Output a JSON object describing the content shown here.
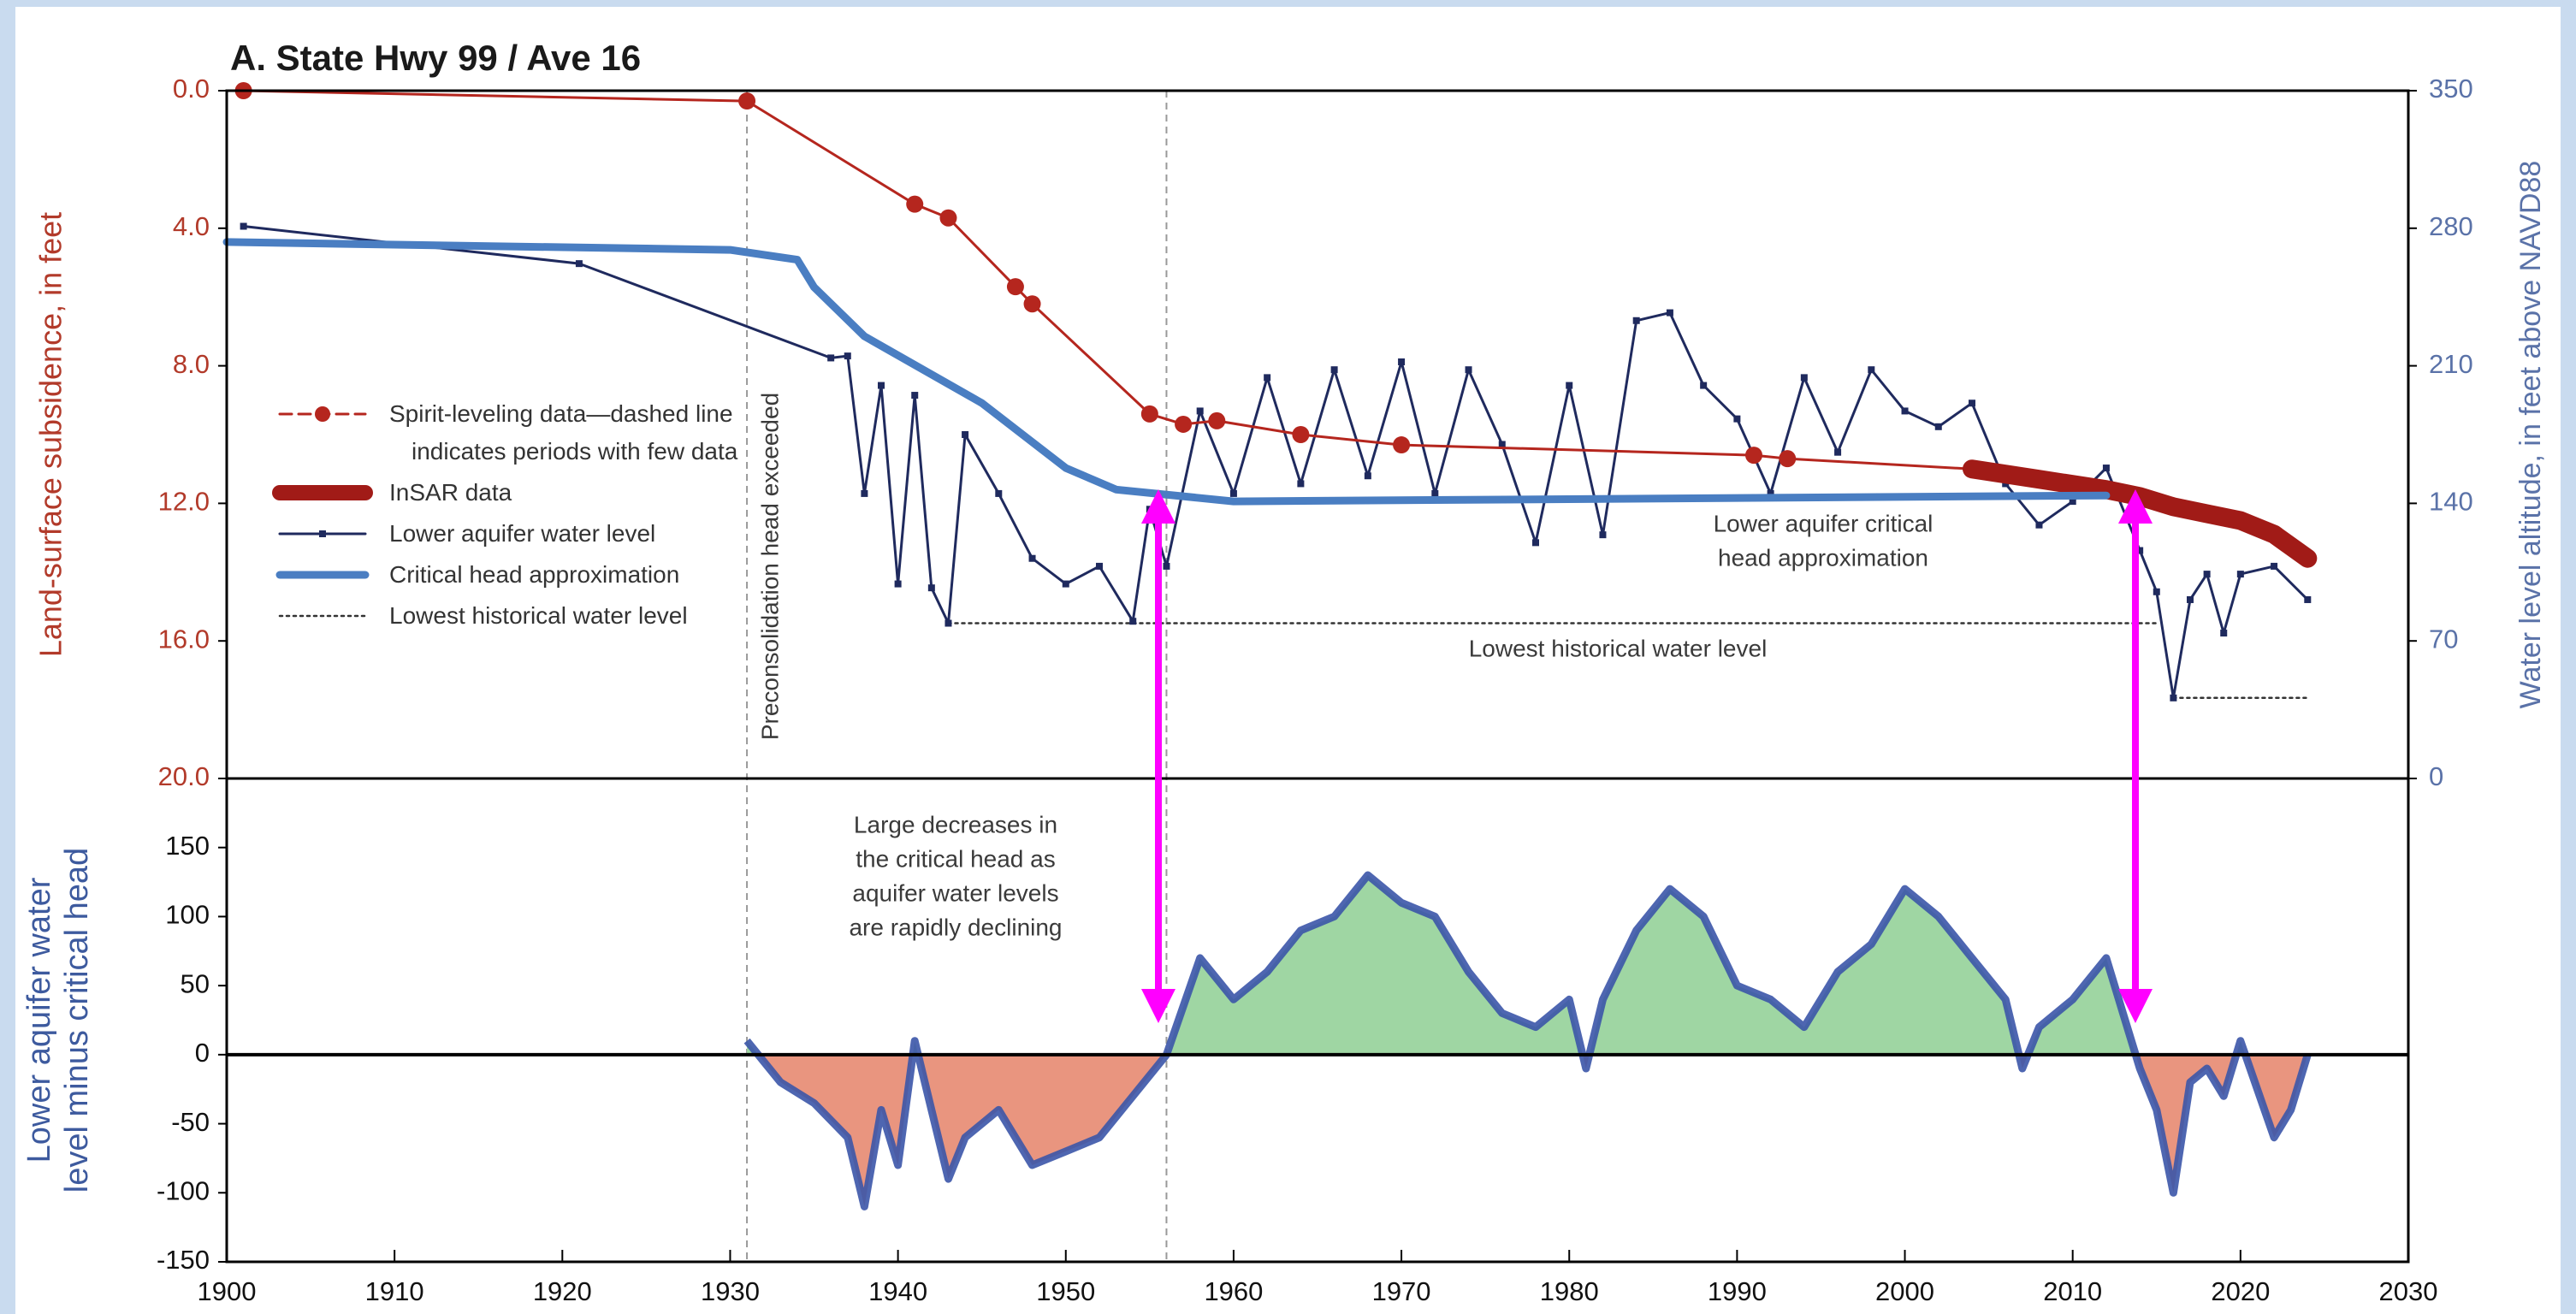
{
  "chart_data": [
    {
      "type": "line",
      "title": "A. State Hwy 99 / Ave 16",
      "ylabel": "Land-surface subsidence, in feet",
      "y2label": "Water level altitude, in feet above NAVD88",
      "xlim": [
        1900,
        2030
      ],
      "ylim": [
        20,
        0
      ],
      "yticks": [
        {
          "value": 0,
          "label": "0.0"
        },
        {
          "value": 4,
          "label": "4.0"
        },
        {
          "value": 8,
          "label": "8.0"
        },
        {
          "value": 12,
          "label": "12.0"
        },
        {
          "value": 16,
          "label": "16.0"
        },
        {
          "value": 20,
          "label": "20.0"
        }
      ],
      "y2lim": [
        0,
        350
      ],
      "y2ticks": [
        0,
        70,
        140,
        210,
        280,
        350
      ],
      "legend": "center left",
      "vlines": [
        1931,
        1956
      ],
      "annotations": [
        "Preconsolidation head exceeded",
        [
          "Lower aquifer critical",
          "head approximation"
        ],
        "Lowest historical water level"
      ],
      "series": [
        {
          "name": "Spirit-leveling data—dashed line indicates periods with few data",
          "color": "#b5261e",
          "axis": "y",
          "line_style": "solid",
          "marker": "circle",
          "x": [
            1901,
            1931,
            1941,
            1943,
            1947,
            1948,
            1955,
            1957,
            1959,
            1964,
            1970,
            1991,
            1993,
            2004
          ],
          "values": [
            0.0,
            0.3,
            3.3,
            3.7,
            5.7,
            6.2,
            9.4,
            9.7,
            9.6,
            10.0,
            10.3,
            10.6,
            10.7,
            11.0
          ]
        },
        {
          "name": "InSAR data",
          "color": "#a11b17",
          "axis": "y",
          "line_style": "thick",
          "x": [
            2004,
            2008,
            2012,
            2014,
            2016,
            2018,
            2020,
            2022,
            2024
          ],
          "values": [
            11.0,
            11.3,
            11.6,
            11.8,
            12.1,
            12.3,
            12.5,
            12.9,
            13.6
          ]
        },
        {
          "name": "Lower aquifer water level",
          "color": "#1f2a5e",
          "axis": "y2",
          "line_style": "solid",
          "marker": "square",
          "x": [
            1901,
            1921,
            1936,
            1937,
            1938,
            1939,
            1940,
            1941,
            1942,
            1943,
            1944,
            1946,
            1948,
            1950,
            1952,
            1954,
            1955,
            1956,
            1958,
            1960,
            1962,
            1964,
            1966,
            1968,
            1970,
            1972,
            1974,
            1976,
            1978,
            1980,
            1982,
            1984,
            1986,
            1988,
            1990,
            1992,
            1994,
            1996,
            1998,
            2000,
            2002,
            2004,
            2006,
            2008,
            2010,
            2012,
            2014,
            2015,
            2016,
            2017,
            2018,
            2019,
            2020,
            2022,
            2024
          ],
          "values": [
            281,
            262,
            214,
            215,
            145,
            200,
            99,
            195,
            97,
            79,
            175,
            145,
            112,
            99,
            108,
            80,
            137,
            108,
            187,
            145,
            204,
            150,
            208,
            154,
            212,
            145,
            208,
            170,
            120,
            200,
            124,
            233,
            237,
            200,
            183,
            145,
            204,
            166,
            208,
            187,
            179,
            191,
            150,
            129,
            141,
            158,
            116,
            95,
            41,
            91,
            104,
            74,
            104,
            108,
            91
          ]
        },
        {
          "name": "Critical head approximation",
          "color": "#4a7ec2",
          "axis": "y2",
          "line_style": "thick",
          "x": [
            1900,
            1930,
            1934,
            1935,
            1938,
            1945,
            1950,
            1953,
            1960,
            2012
          ],
          "values": [
            273,
            269,
            264,
            250,
            225,
            191,
            158,
            147,
            141,
            144
          ]
        },
        {
          "name": "Lowest historical water level",
          "color": "#333333",
          "axis": "y2",
          "line_style": "dotted",
          "x": [
            1943,
            2015,
            2015.5,
            2016,
            2024
          ],
          "values": [
            79,
            79,
            null,
            41,
            41
          ]
        }
      ]
    },
    {
      "type": "area",
      "ylabel": [
        "Lower aquifer water",
        "level minus critical head"
      ],
      "xlim": [
        1900,
        2030
      ],
      "xticks": [
        1900,
        1910,
        1920,
        1930,
        1940,
        1950,
        1960,
        1970,
        1980,
        1990,
        2000,
        2010,
        2020,
        2030
      ],
      "ylim": [
        -150,
        200
      ],
      "yticks": [
        -150,
        -100,
        -50,
        0,
        50,
        100,
        150
      ],
      "annotations": [
        [
          "Large decreases in",
          "the critical head as",
          "aquifer water levels",
          "are rapidly declining"
        ]
      ],
      "series": [
        {
          "color": "#3b55a8",
          "fill_positive": "#9fd6a3",
          "fill_negative": "#e9957f",
          "x": [
            1931,
            1933,
            1935,
            1937,
            1938,
            1939,
            1940,
            1941,
            1942,
            1943,
            1944,
            1946,
            1948,
            1950,
            1952,
            1954,
            1956,
            1958,
            1960,
            1962,
            1964,
            1966,
            1968,
            1970,
            1972,
            1974,
            1976,
            1978,
            1980,
            1981,
            1982,
            1984,
            1986,
            1988,
            1990,
            1992,
            1994,
            1996,
            1998,
            2000,
            2002,
            2004,
            2006,
            2007,
            2008,
            2010,
            2012,
            2013,
            2014,
            2015,
            2016,
            2017,
            2018,
            2019,
            2020,
            2022,
            2023,
            2024
          ],
          "values": [
            10,
            -20,
            -35,
            -60,
            -110,
            -40,
            -80,
            10,
            -40,
            -90,
            -60,
            -40,
            -80,
            -70,
            -60,
            -30,
            0,
            70,
            40,
            60,
            90,
            100,
            130,
            110,
            100,
            60,
            30,
            20,
            40,
            -10,
            40,
            90,
            120,
            100,
            50,
            40,
            20,
            60,
            80,
            120,
            100,
            70,
            40,
            -10,
            20,
            40,
            70,
            30,
            -10,
            -40,
            -100,
            -20,
            -10,
            -30,
            10,
            -60,
            -40,
            0
          ]
        }
      ]
    }
  ]
}
